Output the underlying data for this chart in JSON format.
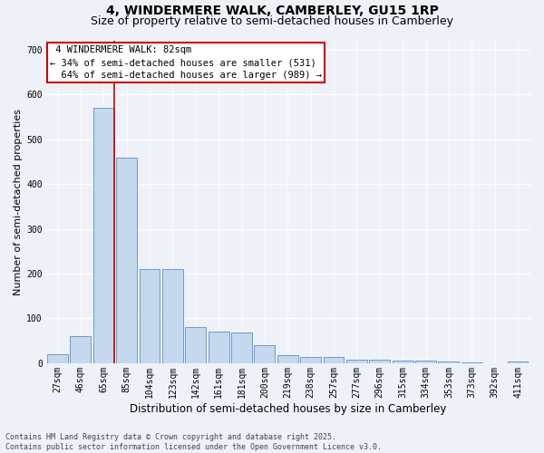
{
  "title": "4, WINDERMERE WALK, CAMBERLEY, GU15 1RP",
  "subtitle": "Size of property relative to semi-detached houses in Camberley",
  "xlabel": "Distribution of semi-detached houses by size in Camberley",
  "ylabel": "Number of semi-detached properties",
  "categories": [
    "27sqm",
    "46sqm",
    "65sqm",
    "85sqm",
    "104sqm",
    "123sqm",
    "142sqm",
    "161sqm",
    "181sqm",
    "200sqm",
    "219sqm",
    "238sqm",
    "257sqm",
    "277sqm",
    "296sqm",
    "315sqm",
    "334sqm",
    "353sqm",
    "373sqm",
    "392sqm",
    "411sqm"
  ],
  "values": [
    20,
    60,
    570,
    460,
    210,
    210,
    80,
    70,
    68,
    40,
    18,
    15,
    14,
    7,
    7,
    5,
    5,
    4,
    1,
    0,
    4
  ],
  "bar_color": "#c5d8ee",
  "bar_edge_color": "#5b8ec7",
  "property_bin_index": 2,
  "property_line_label": "4 WINDERMERE WALK: 82sqm",
  "smaller_pct": "34%",
  "smaller_count": 531,
  "larger_pct": "64%",
  "larger_count": 989,
  "annotation_box_color": "#cc0000",
  "vline_color": "#cc0000",
  "ylim": [
    0,
    720
  ],
  "yticks": [
    0,
    100,
    200,
    300,
    400,
    500,
    600,
    700
  ],
  "bg_color": "#eef2f8",
  "grid_color": "#ffffff",
  "footer_text": "Contains HM Land Registry data © Crown copyright and database right 2025.\nContains public sector information licensed under the Open Government Licence v3.0.",
  "title_fontsize": 10,
  "subtitle_fontsize": 9,
  "axis_label_fontsize": 8,
  "tick_fontsize": 7,
  "annot_fontsize": 7.5,
  "footer_fontsize": 6
}
